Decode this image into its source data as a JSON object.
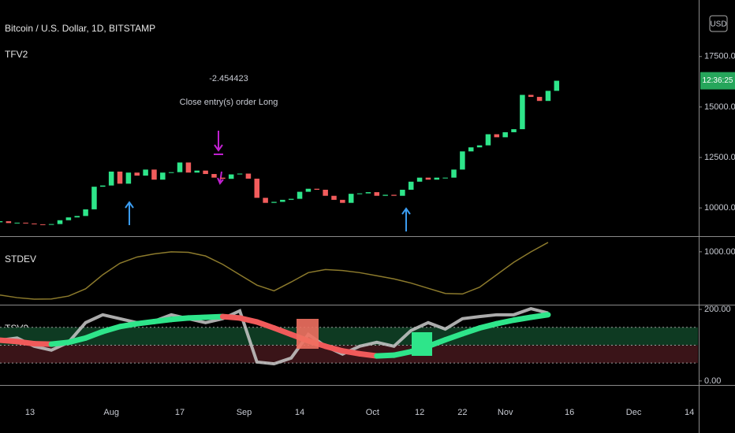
{
  "chart_data": [
    {
      "type": "candlestick",
      "title": "Bitcoin / U.S. Dollar, 1D, BITSTAMP",
      "subtitle": "TFV2",
      "currency": "USD",
      "countdown": "12:36:25",
      "annotations": [
        "-2.454423",
        "Close entry(s) order Long"
      ],
      "x": [
        188,
        190,
        192,
        194,
        196,
        198,
        200,
        202,
        204,
        206,
        208,
        210,
        212,
        214,
        216,
        218,
        220,
        222,
        224,
        226,
        228,
        230,
        232,
        234,
        236,
        238,
        240,
        242,
        244,
        246,
        248,
        250,
        252,
        254,
        256,
        258,
        260,
        262,
        264,
        266,
        268,
        270,
        272,
        274,
        276,
        278,
        280,
        282,
        284,
        286,
        288,
        290,
        292,
        294,
        296,
        298,
        300,
        302,
        304,
        306,
        308,
        310,
        312,
        314,
        316,
        318
      ],
      "open": [
        9290,
        9340,
        9250,
        9270,
        9230,
        9190,
        9170,
        9200,
        9390,
        9530,
        9600,
        9930,
        11050,
        11110,
        11800,
        11200,
        11750,
        11600,
        11900,
        11400,
        11750,
        11770,
        12250,
        11750,
        11850,
        11680,
        11500,
        11440,
        11660,
        11700,
        11450,
        10500,
        10250,
        10300,
        10400,
        10450,
        10800,
        10950,
        10900,
        10600,
        10400,
        10250,
        10700,
        10720,
        10780,
        10600,
        10650,
        10600,
        10900,
        11300,
        11500,
        11400,
        11500,
        11500,
        11900,
        12800,
        13000,
        13100,
        13650,
        13500,
        13750,
        13900,
        15600,
        15500,
        15300,
        15800
      ],
      "close": [
        9340,
        9250,
        9270,
        9230,
        9190,
        9170,
        9200,
        9390,
        9530,
        9600,
        9930,
        11050,
        11110,
        11800,
        11200,
        11750,
        11600,
        11900,
        11400,
        11750,
        11770,
        12250,
        11750,
        11850,
        11680,
        11500,
        11440,
        11660,
        11700,
        11450,
        10500,
        10250,
        10300,
        10400,
        10450,
        10800,
        10950,
        10900,
        10600,
        10400,
        10250,
        10700,
        10720,
        10780,
        10600,
        10650,
        10600,
        10900,
        11300,
        11500,
        11400,
        11500,
        11500,
        11900,
        12800,
        13000,
        13100,
        13650,
        13500,
        13750,
        13900,
        15600,
        15500,
        15300,
        15800,
        16300
      ],
      "up_color": "#2ee58a",
      "down_color": "#f25c5c",
      "countdown_color": "#26a65b",
      "xlim": [
        188,
        351
      ],
      "xticks": [
        {
          "value": 195,
          "label": "13"
        },
        {
          "value": 214,
          "label": "Aug"
        },
        {
          "value": 230,
          "label": "17"
        },
        {
          "value": 245,
          "label": "Sep"
        },
        {
          "value": 258,
          "label": "14"
        },
        {
          "value": 275,
          "label": "Oct"
        },
        {
          "value": 286,
          "label": "12"
        },
        {
          "value": 296,
          "label": "22"
        },
        {
          "value": 306,
          "label": "Nov"
        },
        {
          "value": 321,
          "label": "16"
        },
        {
          "value": 336,
          "label": "Dec"
        },
        {
          "value": 349,
          "label": "14"
        }
      ],
      "ylim": [
        8600,
        20300
      ],
      "yticks": [
        {
          "value": 10000,
          "label": "10000.00"
        },
        {
          "value": 12500,
          "label": "12500.00"
        },
        {
          "value": 15000,
          "label": "15000.00"
        },
        {
          "value": 17500,
          "label": "17500.00"
        }
      ]
    },
    {
      "type": "line",
      "title": "STDEV",
      "x": [
        188,
        192,
        196,
        200,
        204,
        208,
        212,
        216,
        220,
        224,
        228,
        232,
        236,
        240,
        244,
        248,
        252,
        256,
        260,
        264,
        268,
        272,
        276,
        280,
        284,
        288,
        292,
        296,
        300,
        304,
        308,
        312,
        316
      ],
      "series": [
        {
          "color": "#8c7a2c",
          "values": [
            170,
            120,
            90,
            95,
            150,
            290,
            560,
            780,
            900,
            960,
            1000,
            990,
            920,
            760,
            560,
            360,
            250,
            420,
            600,
            660,
            640,
            600,
            540,
            480,
            400,
            300,
            200,
            190,
            320,
            560,
            800,
            1000,
            1180
          ]
        }
      ],
      "ylim": [
        0,
        1270
      ],
      "yticks": [
        {
          "value": 1000,
          "label": "1000.00"
        }
      ]
    },
    {
      "type": "line",
      "title": "TSV2",
      "x": [
        188,
        192,
        196,
        200,
        204,
        208,
        212,
        216,
        220,
        224,
        228,
        232,
        236,
        240,
        244,
        248,
        252,
        256,
        260,
        264,
        268,
        272,
        276,
        280,
        284,
        288,
        292,
        296,
        300,
        304,
        308,
        312,
        316
      ],
      "series": [
        {
          "color": "#c9c9c9",
          "values": [
            114,
            120,
            97,
            86,
            108,
            163,
            185,
            174,
            163,
            167,
            185,
            174,
            163,
            174,
            196,
            53,
            48,
            64,
            130,
            97,
            75,
            97,
            108,
            97,
            141,
            163,
            145,
            174,
            180,
            185,
            185,
            202,
            190
          ]
        },
        {
          "color": "#2ee58a",
          "down_color": "#f05a5a",
          "values": [
            114,
            110,
            104,
            103,
            108,
            120,
            138,
            152,
            160,
            166,
            172,
            176,
            178,
            180,
            176,
            165,
            148,
            130,
            112,
            97,
            84,
            76,
            70,
            72,
            82,
            97,
            115,
            132,
            148,
            160,
            170,
            178,
            185
          ]
        }
      ],
      "levels": [
        50,
        100,
        150
      ],
      "band_colors": [
        "#3a1418",
        "#0e3a22"
      ],
      "ylim": [
        -9,
        211
      ],
      "yticks": [
        {
          "value": 0,
          "label": "0.00"
        },
        {
          "value": 200,
          "label": "200.00"
        }
      ]
    }
  ]
}
